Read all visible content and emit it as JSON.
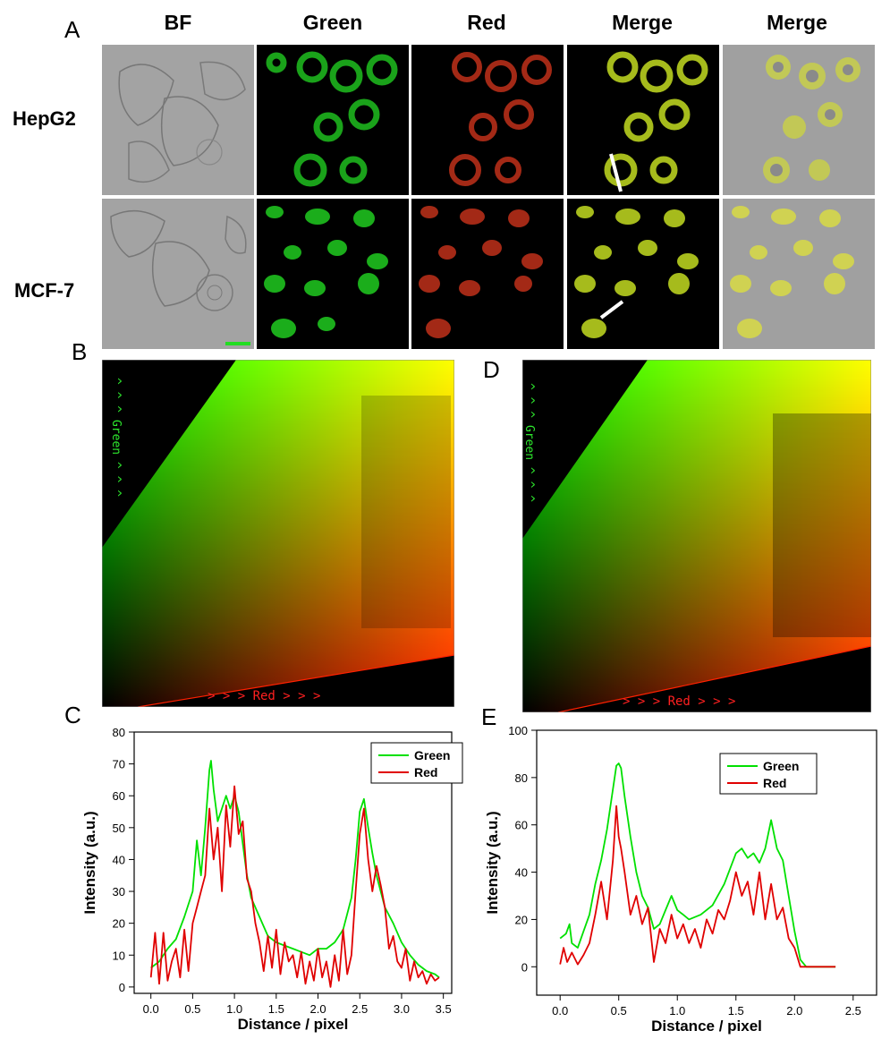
{
  "panel_labels": {
    "A": "A",
    "B": "B",
    "C": "C",
    "D": "D",
    "E": "E"
  },
  "microscopy": {
    "columns": [
      "BF",
      "Green",
      "Red",
      "Merge",
      "Merge"
    ],
    "rows": [
      "HepG2",
      "MCF-7"
    ]
  },
  "scatter_B": {
    "y_label": "^ ^ ^ Green ^ ^ ^",
    "x_label": "> > > Red > > >"
  },
  "scatter_D": {
    "y_label": "^ ^ ^ Green ^ ^ ^",
    "x_label": "> > > Red > > >"
  },
  "colors": {
    "green": "#00e000",
    "red": "#e00000",
    "background": "#000000"
  },
  "chart_data": [
    {
      "type": "line",
      "panel": "C",
      "xlabel": "Distance / pixel",
      "ylabel": "Intensity (a.u.)",
      "xlim": [
        -0.2,
        3.6
      ],
      "ylim": [
        -2,
        80
      ],
      "xticks": [
        0.0,
        0.5,
        1.0,
        1.5,
        2.0,
        2.5,
        3.0,
        3.5
      ],
      "xtick_labels": [
        "0.0",
        "0.5",
        "1.0",
        "1.5",
        "2.0",
        "2.5",
        "3.0",
        "3.5"
      ],
      "yticks": [
        0,
        10,
        20,
        30,
        40,
        50,
        60,
        70,
        80
      ],
      "legend_position": "top-right",
      "series": [
        {
          "name": "Green",
          "color": "#00e000",
          "x": [
            0.0,
            0.1,
            0.2,
            0.3,
            0.4,
            0.5,
            0.55,
            0.6,
            0.65,
            0.7,
            0.72,
            0.75,
            0.8,
            0.85,
            0.9,
            0.95,
            1.0,
            1.05,
            1.1,
            1.15,
            1.2,
            1.3,
            1.4,
            1.5,
            1.6,
            1.7,
            1.8,
            1.9,
            2.0,
            2.1,
            2.2,
            2.3,
            2.4,
            2.45,
            2.5,
            2.55,
            2.6,
            2.65,
            2.7,
            2.75,
            2.8,
            2.9,
            3.0,
            3.1,
            3.2,
            3.3,
            3.4,
            3.45
          ],
          "y": [
            6,
            8,
            12,
            15,
            22,
            30,
            46,
            35,
            50,
            68,
            71,
            62,
            52,
            56,
            60,
            56,
            60,
            55,
            45,
            35,
            28,
            22,
            16,
            14,
            13,
            12,
            11,
            10,
            12,
            12,
            14,
            18,
            28,
            40,
            55,
            59,
            50,
            42,
            35,
            30,
            25,
            20,
            14,
            10,
            7,
            5,
            4,
            3
          ]
        },
        {
          "name": "Red",
          "color": "#e00000",
          "x": [
            0.0,
            0.05,
            0.1,
            0.15,
            0.2,
            0.25,
            0.3,
            0.35,
            0.4,
            0.45,
            0.5,
            0.55,
            0.6,
            0.65,
            0.7,
            0.75,
            0.8,
            0.85,
            0.9,
            0.95,
            1.0,
            1.05,
            1.1,
            1.15,
            1.2,
            1.25,
            1.3,
            1.35,
            1.4,
            1.45,
            1.5,
            1.55,
            1.6,
            1.65,
            1.7,
            1.75,
            1.8,
            1.85,
            1.9,
            1.95,
            2.0,
            2.05,
            2.1,
            2.15,
            2.2,
            2.25,
            2.3,
            2.35,
            2.4,
            2.45,
            2.5,
            2.55,
            2.6,
            2.65,
            2.7,
            2.75,
            2.8,
            2.85,
            2.9,
            2.95,
            3.0,
            3.05,
            3.1,
            3.15,
            3.2,
            3.25,
            3.3,
            3.35,
            3.4,
            3.45
          ],
          "y": [
            3,
            17,
            1,
            17,
            2,
            8,
            12,
            3,
            18,
            5,
            20,
            25,
            30,
            35,
            56,
            40,
            50,
            30,
            57,
            44,
            63,
            48,
            52,
            34,
            30,
            20,
            14,
            5,
            16,
            6,
            18,
            4,
            14,
            8,
            10,
            3,
            11,
            1,
            8,
            2,
            12,
            3,
            8,
            0,
            10,
            2,
            18,
            4,
            10,
            30,
            48,
            56,
            40,
            30,
            38,
            32,
            25,
            12,
            16,
            8,
            6,
            12,
            2,
            8,
            3,
            5,
            1,
            4,
            2,
            3
          ]
        }
      ]
    },
    {
      "type": "line",
      "panel": "E",
      "xlabel": "Distance / pixel",
      "ylabel": "Intensity (a.u.)",
      "xlim": [
        -0.2,
        2.7
      ],
      "ylim": [
        -12,
        100
      ],
      "xticks": [
        0.0,
        0.5,
        1.0,
        1.5,
        2.0,
        2.5
      ],
      "xtick_labels": [
        "0.0",
        "0.5",
        "1.0",
        "1.5",
        "2.0",
        "2.5"
      ],
      "yticks": [
        0,
        20,
        40,
        60,
        80,
        100
      ],
      "legend_position": "top-center",
      "series": [
        {
          "name": "Green",
          "color": "#00e000",
          "x": [
            0.0,
            0.05,
            0.08,
            0.1,
            0.15,
            0.2,
            0.25,
            0.3,
            0.35,
            0.4,
            0.45,
            0.48,
            0.5,
            0.52,
            0.55,
            0.6,
            0.65,
            0.7,
            0.75,
            0.8,
            0.85,
            0.9,
            0.95,
            1.0,
            1.05,
            1.1,
            1.2,
            1.3,
            1.4,
            1.5,
            1.55,
            1.6,
            1.65,
            1.7,
            1.75,
            1.8,
            1.85,
            1.9,
            1.95,
            2.0,
            2.05,
            2.1,
            2.2,
            2.3,
            2.35
          ],
          "y": [
            12,
            14,
            18,
            10,
            8,
            15,
            22,
            35,
            45,
            58,
            75,
            85,
            86,
            84,
            72,
            55,
            40,
            30,
            25,
            16,
            18,
            24,
            30,
            24,
            22,
            20,
            22,
            26,
            35,
            48,
            50,
            46,
            48,
            44,
            50,
            62,
            50,
            45,
            30,
            15,
            3,
            0,
            0,
            0,
            0
          ]
        },
        {
          "name": "Red",
          "color": "#e00000",
          "x": [
            0.0,
            0.03,
            0.06,
            0.1,
            0.15,
            0.2,
            0.25,
            0.3,
            0.35,
            0.4,
            0.45,
            0.48,
            0.5,
            0.52,
            0.55,
            0.6,
            0.65,
            0.7,
            0.75,
            0.8,
            0.85,
            0.9,
            0.95,
            1.0,
            1.05,
            1.1,
            1.15,
            1.2,
            1.25,
            1.3,
            1.35,
            1.4,
            1.45,
            1.5,
            1.55,
            1.6,
            1.65,
            1.7,
            1.75,
            1.8,
            1.85,
            1.9,
            1.95,
            2.0,
            2.05,
            2.1,
            2.2,
            2.3,
            2.35
          ],
          "y": [
            1,
            8,
            2,
            6,
            1,
            5,
            10,
            22,
            36,
            20,
            45,
            68,
            55,
            50,
            40,
            22,
            30,
            18,
            25,
            2,
            16,
            10,
            22,
            12,
            18,
            10,
            16,
            8,
            20,
            14,
            24,
            20,
            28,
            40,
            30,
            36,
            22,
            40,
            20,
            35,
            20,
            25,
            12,
            8,
            0,
            0,
            0,
            0,
            0
          ]
        }
      ]
    }
  ]
}
